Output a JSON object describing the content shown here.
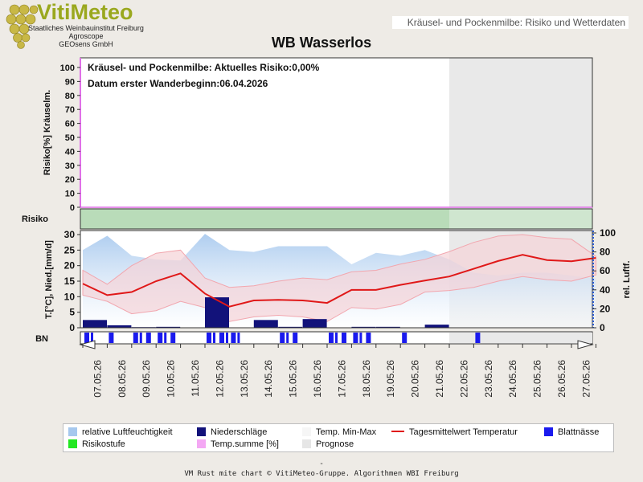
{
  "header": {
    "brand": "VitiMeteo",
    "institute": "Staatliches Weinbauinstitut Freiburg",
    "partner1": "Agroscope",
    "partner2": "GEOsens GmbH",
    "page_label": "Kräusel- und Pockenmilbe: Risiko und Wetterdaten",
    "station": "WB Wasserlos"
  },
  "colors": {
    "humidity": "#a6c8ee",
    "precip": "#12127a",
    "temp_range": "#f5d3d7",
    "temp_mean": "#e01818",
    "leaf_wet": "#1a1aee",
    "risk_band": "#b9dcb9",
    "temp_sum": "#e070e8",
    "forecast": "#e9e9e9"
  },
  "chart_data": {
    "type": "line",
    "dates": [
      "07.05.26",
      "08.05.26",
      "09.05.26",
      "10.05.26",
      "11.05.26",
      "12.05.26",
      "13.05.26",
      "14.05.26",
      "15.05.26",
      "16.05.26",
      "17.05.26",
      "18.05.26",
      "19.05.26",
      "20.05.26",
      "21.05.26",
      "22.05.26",
      "23.05.26",
      "24.05.26",
      "25.05.26",
      "26.05.26",
      "27.05.26"
    ],
    "forecast_start": "21.05.26",
    "risk_panel": {
      "ylabel": "Risiko[%] Kräuselm.",
      "ylim": [
        0,
        100
      ],
      "yticks": [
        0,
        10,
        20,
        30,
        40,
        50,
        60,
        70,
        80,
        90,
        100
      ],
      "risk_text": "Kräusel- und Pockenmilbe: Aktuelles Risiko:0,00%",
      "date_text": "Datum  erster Wanderbeginn:06.04.2026",
      "risk_values": [
        0,
        0,
        0,
        0,
        0,
        0,
        0,
        0,
        0,
        0,
        0,
        0,
        0,
        0,
        0,
        0,
        0,
        0,
        0,
        0,
        0,
        0
      ]
    },
    "risk_band_label": "Risiko",
    "weather_panel": {
      "ylabel": "T.[°C], Nied.[mm/d]",
      "ylim": [
        0,
        30
      ],
      "yticks": [
        0,
        5,
        10,
        15,
        20,
        25,
        30
      ],
      "y2label": "rel. Luftf.",
      "y2lim": [
        0,
        100
      ],
      "y2ticks": [
        0,
        20,
        40,
        60,
        80,
        100
      ],
      "x": [
        "06.05",
        "07.05",
        "08.05",
        "09.05",
        "10.05",
        "11.05",
        "12.05",
        "13.05",
        "14.05",
        "15.05",
        "16.05",
        "17.05",
        "18.05",
        "19.05",
        "20.05",
        "21.05",
        "22.05",
        "23.05",
        "24.05",
        "25.05",
        "26.05",
        "27.05"
      ],
      "temp_mean": [
        14.2,
        10.5,
        11.5,
        15.0,
        17.5,
        11.0,
        6.8,
        8.8,
        9.0,
        8.8,
        8.0,
        12.2,
        12.2,
        13.8,
        15.2,
        16.5,
        19.0,
        21.5,
        23.5,
        21.8,
        21.4,
        22.5
      ],
      "temp_max": [
        18.5,
        14.0,
        20.0,
        24.0,
        25.0,
        16.0,
        13.0,
        13.5,
        15.0,
        16.0,
        15.5,
        18.0,
        18.5,
        20.5,
        22.0,
        24.5,
        27.5,
        29.5,
        30.0,
        29.0,
        28.5,
        23.0
      ],
      "temp_min": [
        10.5,
        8.5,
        4.5,
        5.5,
        8.5,
        6.5,
        2.0,
        3.5,
        4.0,
        3.5,
        2.0,
        6.5,
        6.0,
        7.5,
        11.5,
        12.0,
        13.0,
        15.0,
        16.5,
        15.5,
        15.0,
        17.0
      ],
      "humidity": [
        82,
        97,
        76,
        72,
        71,
        99,
        82,
        80,
        86,
        86,
        86,
        67,
        79,
        76,
        82,
        72,
        58,
        55,
        58,
        58,
        55,
        52
      ],
      "precip": [
        2.5,
        0.8,
        0.2,
        0.3,
        0,
        9.8,
        0,
        2.5,
        0.3,
        2.8,
        0,
        0.3,
        0.3,
        0,
        1.0,
        0,
        0,
        0,
        0,
        0,
        0,
        0
      ]
    },
    "leaf_wetness_label": "BN",
    "leaf_wetness": [
      2,
      1,
      3,
      3,
      0,
      4,
      2,
      0,
      3,
      0,
      3,
      3,
      0,
      1,
      0,
      0,
      1,
      0,
      0,
      0,
      0,
      0
    ],
    "legend": [
      "relative Luftfeuchtigkeit",
      "Niederschläge",
      "Temp. Min-Max",
      "Tagesmittelwert Temperatur",
      "Blattnässe",
      "Risikostufe",
      "Temp.summe [%]",
      "Prognose"
    ]
  },
  "footer": {
    "dash": "-",
    "credit": "VM Rust mite chart © VitiMeteo-Gruppe. Algorithmen WBI Freiburg"
  }
}
